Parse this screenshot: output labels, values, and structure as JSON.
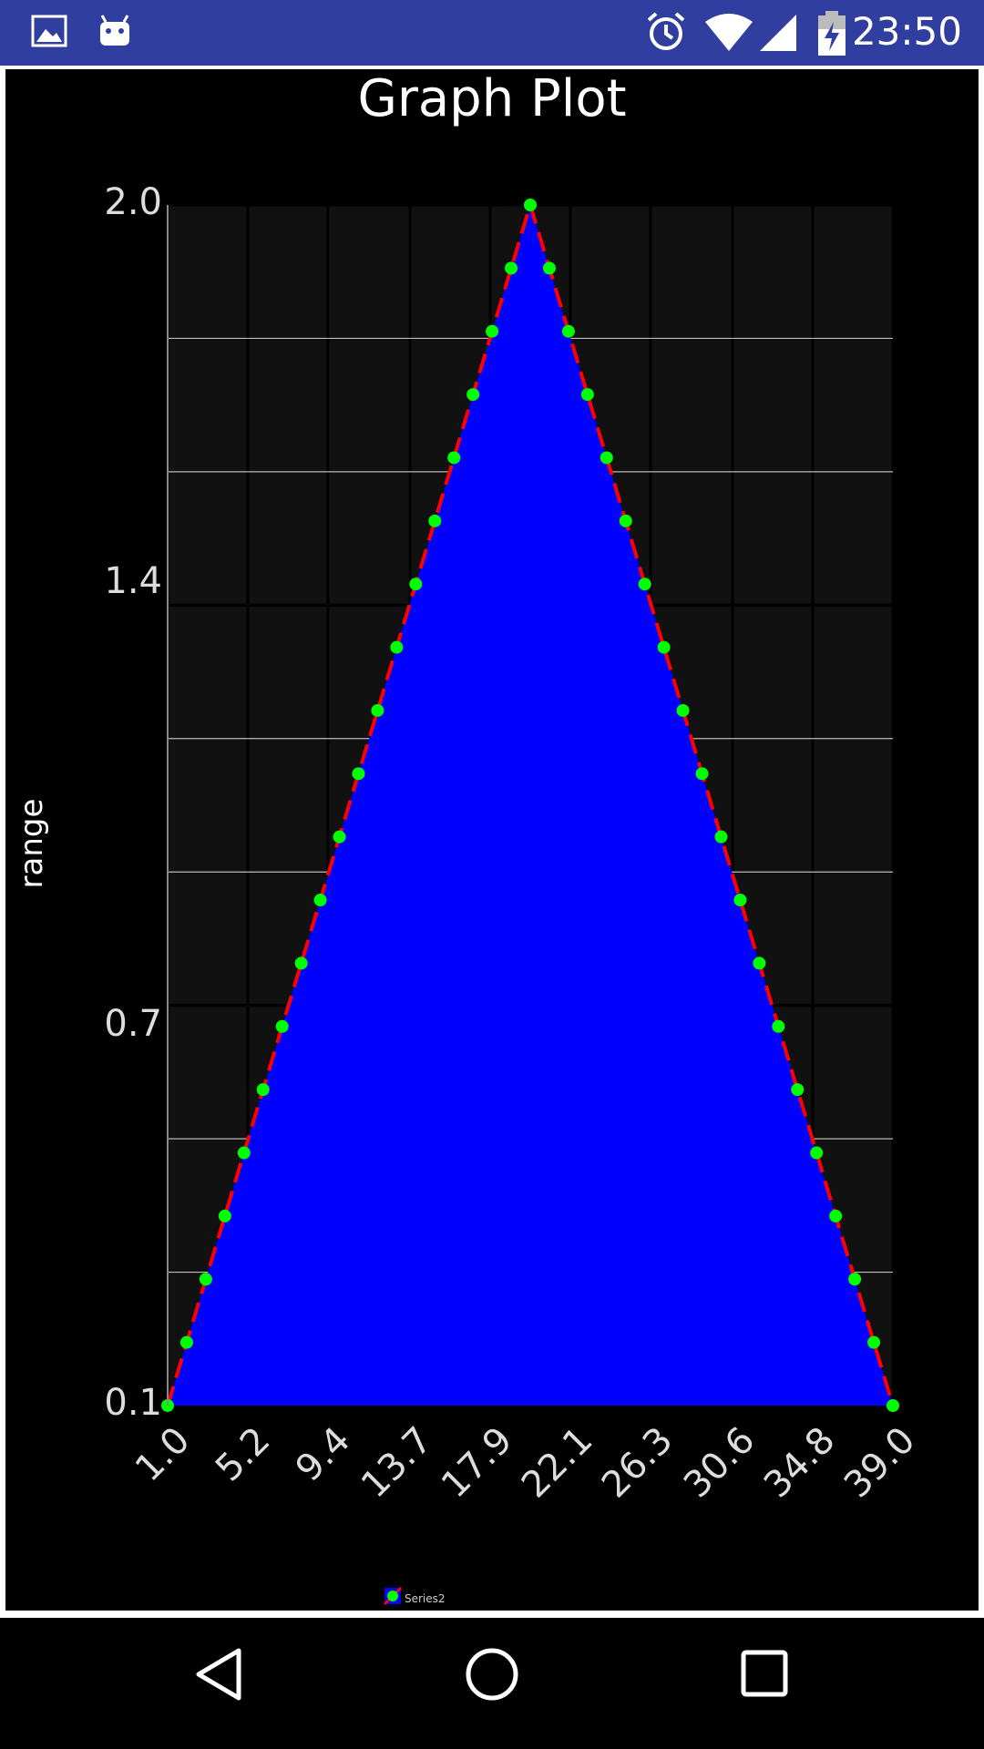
{
  "status_bar": {
    "time": "23:50",
    "icons": [
      "image-icon",
      "android-icon",
      "alarm-icon",
      "wifi-icon",
      "cell-signal-icon",
      "battery-charging-icon"
    ]
  },
  "navigation_bar": {
    "buttons": [
      "back-button",
      "home-button",
      "recents-button"
    ]
  },
  "chart_data": {
    "type": "area",
    "title": "Graph Plot",
    "xlabel": "",
    "ylabel": "range",
    "xlim": [
      1.0,
      39.0
    ],
    "ylim": [
      0.1,
      2.0
    ],
    "x_ticks": [
      "1.0",
      "5.2",
      "9.4",
      "13.7",
      "17.9",
      "22.1",
      "26.3",
      "30.6",
      "34.8",
      "39.0"
    ],
    "y_ticks": [
      "0.1",
      "0.7",
      "1.4",
      "2.0"
    ],
    "grid": true,
    "legend": "bottom",
    "colors": {
      "fill": "#0000FF",
      "line": "#FF0000",
      "points": "#00FF00",
      "plot_bg": "#111111"
    },
    "series": [
      {
        "name": "Series2",
        "x": [
          1,
          2,
          3,
          4,
          5,
          6,
          7,
          8,
          9,
          10,
          11,
          12,
          13,
          14,
          15,
          16,
          17,
          18,
          19,
          20,
          21,
          22,
          23,
          24,
          25,
          26,
          27,
          28,
          29,
          30,
          31,
          32,
          33,
          34,
          35,
          36,
          37,
          38,
          39
        ],
        "values": [
          0.1,
          0.2,
          0.3,
          0.4,
          0.5,
          0.6,
          0.7,
          0.8,
          0.9,
          1.0,
          1.1,
          1.2,
          1.3,
          1.4,
          1.5,
          1.6,
          1.7,
          1.8,
          1.9,
          2.0,
          1.9,
          1.8,
          1.7,
          1.6,
          1.5,
          1.4,
          1.3,
          1.2,
          1.1,
          1.0,
          0.9,
          0.8,
          0.7,
          0.6,
          0.5,
          0.4,
          0.3,
          0.2,
          0.1
        ]
      }
    ]
  }
}
